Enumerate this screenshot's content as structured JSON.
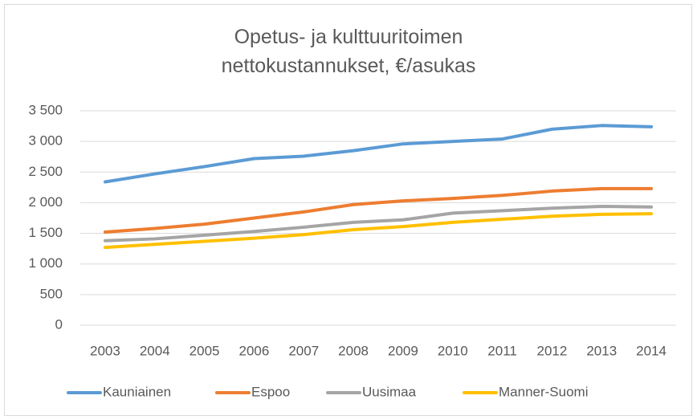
{
  "chart_data": {
    "type": "line",
    "title": "Opetus- ja kulttuuritoimen nettokustannukset, €/asukas",
    "categories": [
      "2003",
      "2004",
      "2005",
      "2006",
      "2007",
      "2008",
      "2009",
      "2010",
      "2011",
      "2012",
      "2013",
      "2014"
    ],
    "series": [
      {
        "name": "Kauniainen",
        "color": "#5b9bd5",
        "values": [
          2340,
          2470,
          2590,
          2720,
          2760,
          2850,
          2960,
          3000,
          3040,
          3200,
          3260,
          3240
        ]
      },
      {
        "name": "Espoo",
        "color": "#ed7d31",
        "values": [
          1520,
          1580,
          1650,
          1750,
          1850,
          1970,
          2030,
          2070,
          2120,
          2190,
          2230,
          2230
        ]
      },
      {
        "name": "Uusimaa",
        "color": "#a5a5a5",
        "values": [
          1380,
          1410,
          1470,
          1530,
          1600,
          1680,
          1720,
          1830,
          1870,
          1910,
          1940,
          1930
        ]
      },
      {
        "name": "Manner-Suomi",
        "color": "#ffc000",
        "values": [
          1270,
          1320,
          1370,
          1420,
          1480,
          1560,
          1610,
          1680,
          1730,
          1780,
          1810,
          1820
        ]
      }
    ],
    "ylim": [
      0,
      3500
    ],
    "yticks": [
      0,
      500,
      {
        "value": 1000,
        "label": "1 000"
      },
      {
        "value": 1500,
        "label": "1 500"
      },
      {
        "value": 2000,
        "label": "2 000"
      },
      {
        "value": 2500,
        "label": "2 500"
      },
      {
        "value": 3000,
        "label": "3 000"
      },
      {
        "value": 3500,
        "label": "3 500"
      }
    ],
    "grid": true,
    "legend": "bottom"
  }
}
